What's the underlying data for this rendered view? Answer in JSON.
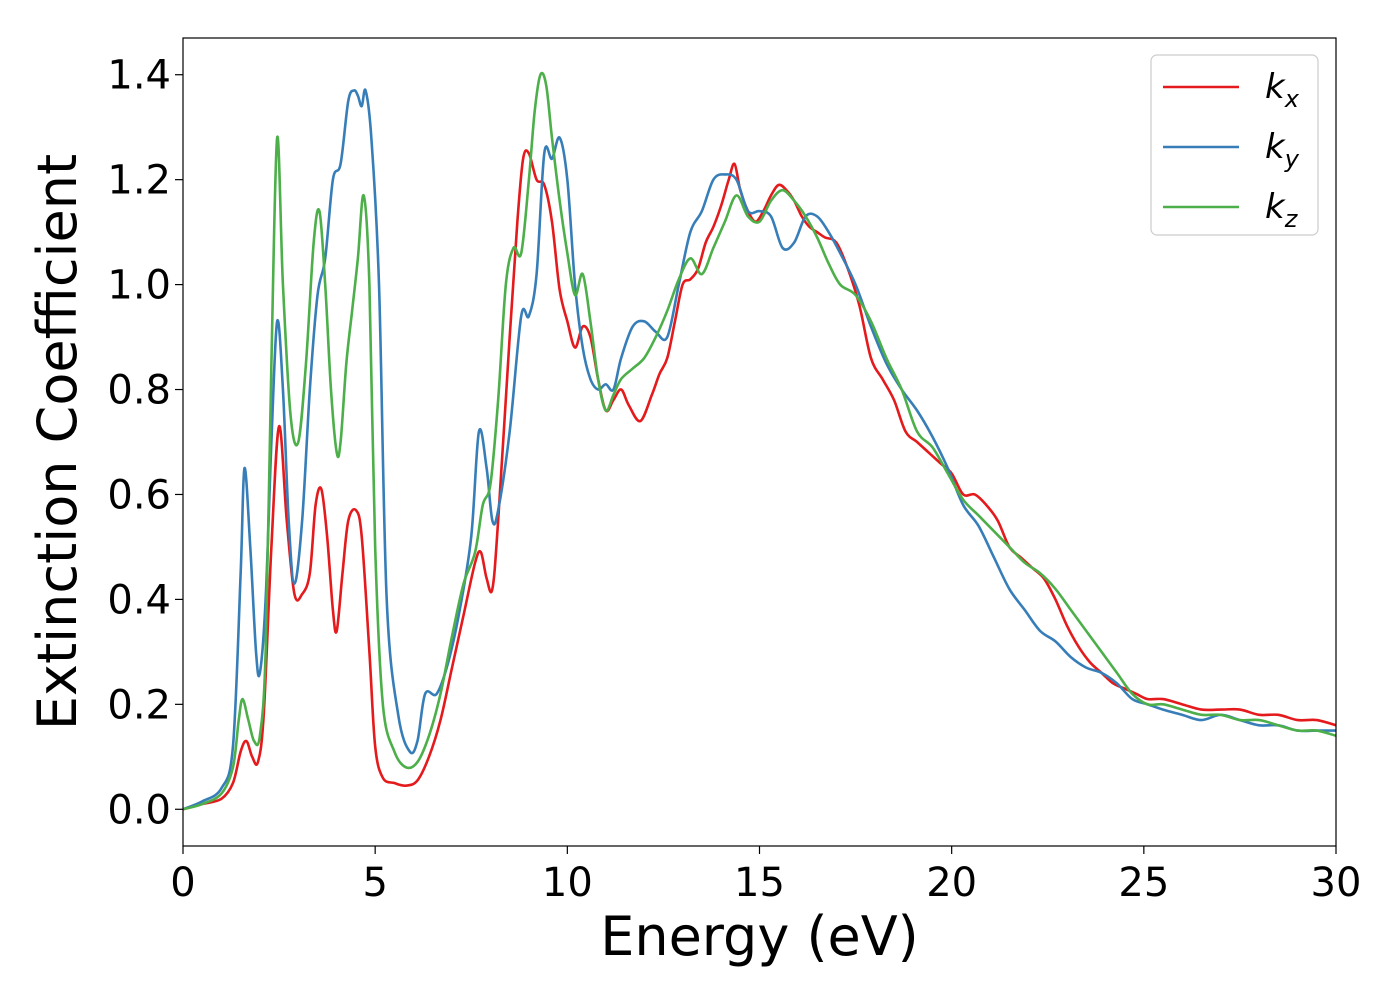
{
  "chart_data": {
    "type": "line",
    "title": "",
    "xlabel": "Energy (eV)",
    "ylabel": "Extinction Coefficient",
    "xlim": [
      0,
      30
    ],
    "ylim": [
      -0.07,
      1.47
    ],
    "xticks": [
      0,
      5,
      10,
      15,
      20,
      25,
      30
    ],
    "xtick_labels": [
      "0",
      "5",
      "10",
      "15",
      "20",
      "25",
      "30"
    ],
    "yticks": [
      0.0,
      0.2,
      0.4,
      0.6,
      0.8,
      1.0,
      1.2,
      1.4
    ],
    "ytick_labels": [
      "0.0",
      "0.2",
      "0.4",
      "0.6",
      "0.8",
      "1.0",
      "1.2",
      "1.4"
    ],
    "grid": false,
    "legend": {
      "position": "top-right",
      "entries": [
        {
          "base": "k",
          "sub": "x",
          "color": "#e41a1c"
        },
        {
          "base": "k",
          "sub": "y",
          "color": "#377eb8"
        },
        {
          "base": "k",
          "sub": "z",
          "color": "#4daf4a"
        }
      ]
    },
    "series": [
      {
        "name": "kx",
        "color": "#e41a1c",
        "x": [
          0,
          0.5,
          1.0,
          1.3,
          1.5,
          1.65,
          1.8,
          1.95,
          2.1,
          2.3,
          2.5,
          2.7,
          2.9,
          3.1,
          3.3,
          3.45,
          3.6,
          3.75,
          3.9,
          4.0,
          4.15,
          4.3,
          4.5,
          4.65,
          4.85,
          5.0,
          5.2,
          5.5,
          5.8,
          6.1,
          6.4,
          6.7,
          7.0,
          7.3,
          7.6,
          7.75,
          7.9,
          8.05,
          8.2,
          8.5,
          8.7,
          8.85,
          9.0,
          9.2,
          9.4,
          9.6,
          9.8,
          10.0,
          10.2,
          10.4,
          10.6,
          10.8,
          11.0,
          11.2,
          11.4,
          11.6,
          11.9,
          12.2,
          12.4,
          12.6,
          12.8,
          13.0,
          13.2,
          13.4,
          13.6,
          13.8,
          14.0,
          14.2,
          14.35,
          14.5,
          14.7,
          14.9,
          15.1,
          15.3,
          15.5,
          15.7,
          15.9,
          16.1,
          16.3,
          16.5,
          16.7,
          17.0,
          17.3,
          17.6,
          17.9,
          18.2,
          18.5,
          18.8,
          19.1,
          19.4,
          19.7,
          20.0,
          20.3,
          20.6,
          20.9,
          21.2,
          21.5,
          21.8,
          22.1,
          22.4,
          22.7,
          23.0,
          23.3,
          23.6,
          23.9,
          24.2,
          24.5,
          24.8,
          25.1,
          25.5,
          26.0,
          26.5,
          27.0,
          27.5,
          28.0,
          28.5,
          29.0,
          29.5,
          30.0
        ],
        "values": [
          0.0,
          0.01,
          0.02,
          0.05,
          0.11,
          0.13,
          0.1,
          0.09,
          0.18,
          0.5,
          0.73,
          0.55,
          0.41,
          0.41,
          0.45,
          0.58,
          0.61,
          0.52,
          0.38,
          0.34,
          0.45,
          0.55,
          0.57,
          0.52,
          0.3,
          0.12,
          0.06,
          0.05,
          0.045,
          0.055,
          0.1,
          0.17,
          0.27,
          0.37,
          0.47,
          0.49,
          0.44,
          0.42,
          0.55,
          0.9,
          1.12,
          1.24,
          1.25,
          1.2,
          1.19,
          1.12,
          0.99,
          0.93,
          0.88,
          0.92,
          0.9,
          0.82,
          0.76,
          0.78,
          0.8,
          0.77,
          0.74,
          0.79,
          0.83,
          0.86,
          0.93,
          1.0,
          1.01,
          1.03,
          1.08,
          1.11,
          1.15,
          1.2,
          1.23,
          1.18,
          1.14,
          1.12,
          1.14,
          1.17,
          1.19,
          1.18,
          1.16,
          1.13,
          1.11,
          1.1,
          1.09,
          1.08,
          1.03,
          0.96,
          0.86,
          0.82,
          0.78,
          0.72,
          0.7,
          0.68,
          0.66,
          0.64,
          0.6,
          0.6,
          0.58,
          0.55,
          0.5,
          0.48,
          0.46,
          0.44,
          0.4,
          0.35,
          0.31,
          0.28,
          0.26,
          0.24,
          0.23,
          0.22,
          0.21,
          0.21,
          0.2,
          0.19,
          0.19,
          0.19,
          0.18,
          0.18,
          0.17,
          0.17,
          0.16
        ],
        "smooth": true
      },
      {
        "name": "ky",
        "color": "#377eb8",
        "x": [
          0,
          0.5,
          1.0,
          1.3,
          1.5,
          1.6,
          1.75,
          1.9,
          2.0,
          2.15,
          2.3,
          2.45,
          2.6,
          2.75,
          2.9,
          3.1,
          3.3,
          3.5,
          3.7,
          3.9,
          4.1,
          4.3,
          4.45,
          4.55,
          4.65,
          4.75,
          4.9,
          5.1,
          5.3,
          5.6,
          5.9,
          6.1,
          6.3,
          6.6,
          6.9,
          7.2,
          7.5,
          7.7,
          7.9,
          8.05,
          8.2,
          8.5,
          8.8,
          9.0,
          9.2,
          9.4,
          9.6,
          9.8,
          10.0,
          10.2,
          10.4,
          10.6,
          10.8,
          11.0,
          11.2,
          11.4,
          11.7,
          12.0,
          12.3,
          12.6,
          12.9,
          13.2,
          13.5,
          13.8,
          14.1,
          14.4,
          14.7,
          15.0,
          15.3,
          15.6,
          15.9,
          16.2,
          16.5,
          16.8,
          17.1,
          17.5,
          17.9,
          18.3,
          18.7,
          19.1,
          19.5,
          19.9,
          20.3,
          20.7,
          21.1,
          21.5,
          21.9,
          22.3,
          22.7,
          23.1,
          23.5,
          23.9,
          24.3,
          24.7,
          25.1,
          25.5,
          26.0,
          26.5,
          27.0,
          27.5,
          28.0,
          28.5,
          29.0,
          29.5,
          30.0
        ],
        "values": [
          0.0,
          0.015,
          0.04,
          0.12,
          0.45,
          0.65,
          0.5,
          0.3,
          0.26,
          0.4,
          0.7,
          0.93,
          0.8,
          0.55,
          0.43,
          0.55,
          0.8,
          0.98,
          1.05,
          1.2,
          1.23,
          1.35,
          1.37,
          1.36,
          1.34,
          1.37,
          1.28,
          1.0,
          0.4,
          0.18,
          0.11,
          0.13,
          0.22,
          0.22,
          0.28,
          0.38,
          0.52,
          0.72,
          0.65,
          0.55,
          0.57,
          0.72,
          0.94,
          0.94,
          1.02,
          1.25,
          1.24,
          1.28,
          1.2,
          1.0,
          0.88,
          0.82,
          0.8,
          0.81,
          0.8,
          0.86,
          0.92,
          0.93,
          0.91,
          0.9,
          1.0,
          1.1,
          1.14,
          1.2,
          1.21,
          1.2,
          1.14,
          1.14,
          1.13,
          1.07,
          1.08,
          1.13,
          1.13,
          1.1,
          1.06,
          1.0,
          0.92,
          0.85,
          0.8,
          0.76,
          0.71,
          0.65,
          0.58,
          0.54,
          0.48,
          0.42,
          0.38,
          0.34,
          0.32,
          0.29,
          0.27,
          0.26,
          0.24,
          0.21,
          0.2,
          0.19,
          0.18,
          0.17,
          0.18,
          0.17,
          0.16,
          0.16,
          0.15,
          0.15,
          0.15
        ],
        "smooth": true
      },
      {
        "name": "kz",
        "color": "#4daf4a",
        "x": [
          0,
          0.5,
          1.0,
          1.3,
          1.45,
          1.55,
          1.7,
          1.85,
          2.0,
          2.15,
          2.3,
          2.45,
          2.6,
          2.8,
          3.0,
          3.2,
          3.4,
          3.55,
          3.7,
          3.85,
          4.0,
          4.1,
          4.25,
          4.4,
          4.55,
          4.7,
          4.85,
          5.0,
          5.2,
          5.5,
          5.8,
          6.1,
          6.4,
          6.7,
          7.0,
          7.3,
          7.6,
          7.8,
          8.0,
          8.2,
          8.4,
          8.6,
          8.8,
          9.0,
          9.15,
          9.3,
          9.45,
          9.6,
          9.8,
          10.0,
          10.2,
          10.4,
          10.6,
          10.8,
          11.0,
          11.2,
          11.4,
          11.7,
          12.0,
          12.3,
          12.6,
          12.9,
          13.2,
          13.5,
          13.8,
          14.1,
          14.4,
          14.7,
          15.0,
          15.3,
          15.6,
          15.9,
          16.2,
          16.5,
          16.8,
          17.1,
          17.5,
          17.9,
          18.3,
          18.7,
          19.1,
          19.5,
          19.9,
          20.3,
          20.7,
          21.1,
          21.5,
          21.9,
          22.3,
          22.7,
          23.1,
          23.5,
          23.9,
          24.3,
          24.7,
          25.1,
          25.5,
          26.0,
          26.5,
          27.0,
          27.5,
          28.0,
          28.5,
          29.0,
          29.5,
          30.0
        ],
        "values": [
          0.0,
          0.01,
          0.03,
          0.08,
          0.17,
          0.21,
          0.17,
          0.13,
          0.14,
          0.3,
          0.85,
          1.28,
          1.0,
          0.75,
          0.7,
          0.85,
          1.08,
          1.14,
          1.0,
          0.8,
          0.68,
          0.7,
          0.85,
          0.95,
          1.05,
          1.17,
          1.0,
          0.5,
          0.2,
          0.11,
          0.08,
          0.09,
          0.14,
          0.22,
          0.33,
          0.43,
          0.49,
          0.58,
          0.62,
          0.78,
          1.0,
          1.07,
          1.06,
          1.2,
          1.33,
          1.4,
          1.38,
          1.28,
          1.16,
          1.06,
          0.98,
          1.02,
          0.93,
          0.82,
          0.76,
          0.79,
          0.82,
          0.84,
          0.86,
          0.9,
          0.95,
          1.01,
          1.05,
          1.02,
          1.07,
          1.12,
          1.17,
          1.13,
          1.12,
          1.16,
          1.18,
          1.16,
          1.13,
          1.09,
          1.04,
          1.0,
          0.98,
          0.93,
          0.86,
          0.8,
          0.72,
          0.69,
          0.64,
          0.59,
          0.56,
          0.53,
          0.5,
          0.47,
          0.45,
          0.42,
          0.38,
          0.34,
          0.3,
          0.26,
          0.22,
          0.2,
          0.2,
          0.19,
          0.18,
          0.18,
          0.17,
          0.17,
          0.16,
          0.15,
          0.15,
          0.14
        ],
        "smooth": true
      }
    ]
  }
}
